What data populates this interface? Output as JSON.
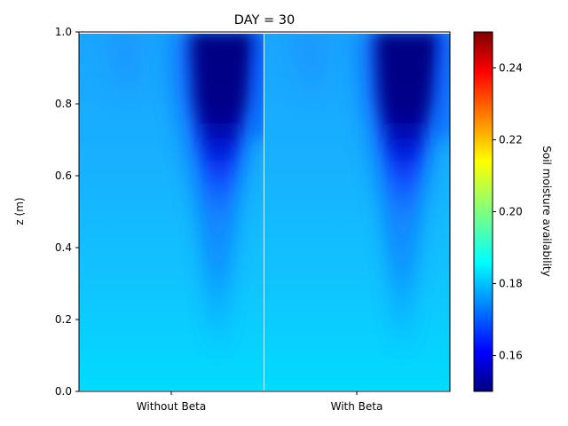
{
  "chart_data": {
    "type": "heatmap",
    "title": "DAY = 30",
    "ylabel": "z (m)",
    "xlabel": "",
    "categories": [
      "Without Beta",
      "With Beta"
    ],
    "ylim": [
      0,
      1.0
    ],
    "yticks": [
      "0.0",
      "0.2",
      "0.4",
      "0.6",
      "0.8",
      "1.0"
    ],
    "colorbar": {
      "label": "Soil moisture availability",
      "range": [
        0.15,
        0.25
      ],
      "ticks": [
        "0.16",
        "0.18",
        "0.20",
        "0.22",
        "0.24"
      ],
      "colormap": "jet"
    },
    "series": [
      {
        "name": "Without Beta",
        "profile_z": [
          0.0,
          0.1,
          0.2,
          0.3,
          0.4,
          0.5,
          0.6,
          0.7,
          0.8,
          0.9,
          0.99
        ],
        "background_value": [
          0.187,
          0.186,
          0.184,
          0.182,
          0.181,
          0.18,
          0.179,
          0.178,
          0.177,
          0.176,
          0.175
        ],
        "dry_core_value": [
          0.185,
          0.18,
          0.178,
          0.174,
          0.17,
          0.166,
          0.16,
          0.154,
          0.15,
          0.15,
          0.15
        ]
      },
      {
        "name": "With Beta",
        "profile_z": [
          0.0,
          0.1,
          0.2,
          0.3,
          0.4,
          0.5,
          0.6,
          0.7,
          0.8,
          0.9,
          0.99
        ],
        "background_value": [
          0.187,
          0.186,
          0.184,
          0.182,
          0.181,
          0.18,
          0.179,
          0.178,
          0.177,
          0.176,
          0.175
        ],
        "dry_core_value": [
          0.185,
          0.18,
          0.178,
          0.174,
          0.17,
          0.166,
          0.16,
          0.154,
          0.15,
          0.15,
          0.15
        ]
      }
    ]
  }
}
